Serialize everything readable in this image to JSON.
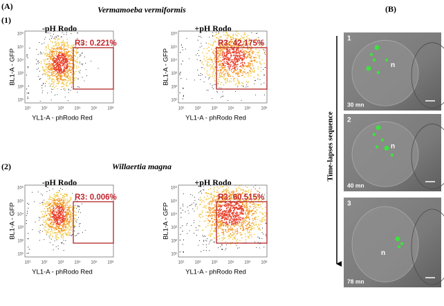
{
  "panel_a": {
    "label": "(A)",
    "y_axis_label": "BL1-A - GFP",
    "x_axis_label": "YL1-A - phRodo Red",
    "x_tick_labels": [
      "10¹",
      "10²",
      "10³",
      "10⁴",
      "10⁵",
      "10⁶"
    ],
    "y_tick_labels": [
      "10¹",
      "10²",
      "10³",
      "10⁴",
      "10⁵",
      "10⁶"
    ],
    "rows": [
      {
        "label": "(1)",
        "organism": "Vermamoeba vermiformis",
        "plots": [
          {
            "title": "-pH Rodo",
            "gate": "R3: 0.221%"
          },
          {
            "title": "+pH Rodo",
            "gate": "R3: 42.175%"
          }
        ]
      },
      {
        "label": "(2)",
        "organism": "Willaertia magna",
        "plots": [
          {
            "title": "-pH Rodo",
            "gate": "R3: 0.006%"
          },
          {
            "title": "+pH Rodo",
            "gate": "R3: 60.515%"
          }
        ]
      }
    ]
  },
  "panel_b": {
    "label": "(B)",
    "axis_label": "Time-lapses sequence",
    "frames": [
      {
        "number": "1",
        "time": "30 mn",
        "marker": "n"
      },
      {
        "number": "2",
        "time": "40 mn",
        "marker": "n"
      },
      {
        "number": "3",
        "time": "78 mn",
        "marker": "n"
      }
    ]
  }
}
